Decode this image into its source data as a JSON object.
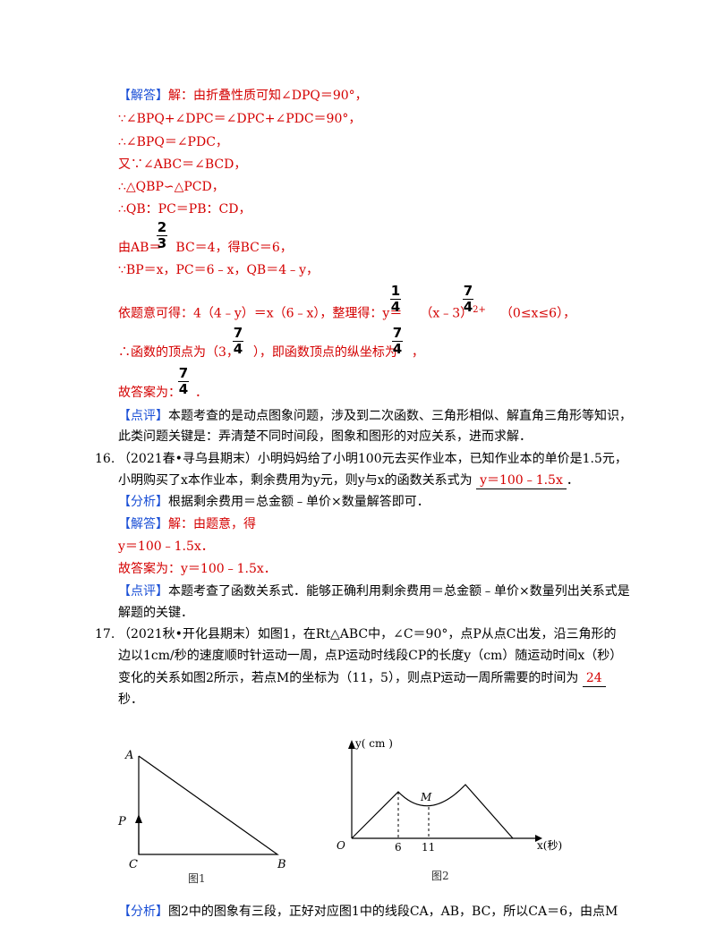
{
  "labels": {
    "answer": "【解答】",
    "comment": "【点评】",
    "analysis": "【分析】"
  },
  "lines": {
    "l1": "解：由折叠性质可知∠DPQ＝90°，",
    "l2": "∵∠BPQ+∠DPC＝∠DPC+∠PDC＝90°，",
    "l3": "∴∠BPQ＝∠PDC，",
    "l4": "又∵∠ABC＝∠BCD，",
    "l5": "∴△QBP∽△PCD，",
    "l6": "∴QB：PC＝PB：CD，",
    "l7a": "由AB＝",
    "l7b": "BC＝4，得BC＝6，",
    "l8": "∵BP＝x，PC＝6﹣x，QB＝4﹣y，",
    "l9a": "依题意可得：4（4﹣y）＝x（6﹣x），整理得：y＝",
    "l9b": "（x﹣3）",
    "l9c": "2+",
    "l9d": "（0≤x≤6），",
    "l10a": "∴函数的顶点为（3，",
    "l10b": "），即函数顶点的纵坐标为",
    "l10c": "，",
    "l11": "故答案为：",
    "l11b": "．",
    "c15a": "本题考查的是动点图象问题，涉及到二次函数、三角形相似、解直角三角形等知识，",
    "c15b": "此类问题关键是：弄清楚不同时间段，图象和图形的对应关系，进而求解．"
  },
  "fracs": {
    "two": "2",
    "three": "3",
    "one": "1",
    "four": "4",
    "seven": "7"
  },
  "q16": {
    "num": "16.",
    "t1": "（2021春•寻乌县期末）小明妈妈给了小明100元去买作业本，已知作业本的单价是1.5元，",
    "t2": "小明购买了x本作业本，剩余费用为y元，则y与x的函数关系式为",
    "ans": "y＝100﹣1.5x",
    "t2end": "．",
    "analysis": "根据剩余费用＝总金额﹣单价×数量解答即可．",
    "sol1": "解：由题意，得",
    "sol2": "y＝100﹣1.5x．",
    "sol3": "故答案为：y＝100﹣1.5x．",
    "comment1": "本题考查了函数关系式．能够正确利用剩余费用＝总金额﹣单价×数量列出关系式是",
    "comment2": "解题的关键．"
  },
  "q17": {
    "num": "17.",
    "t1": "（2021秋•开化县期末）如图1，在Rt△ABC中，∠C＝90°，点P从点C出发，沿三角形的",
    "t2": "边以1cm/秒的速度顺时针运动一周，点P运动时线段CP的长度y（cm）随运动时间x（秒）",
    "t3": "变化的关系如图2所示，若点M的坐标为（11，5），则点P运动一周所需要的时间为",
    "ans": "24",
    "t4": "秒．",
    "analysis": "图2中的图象有三段，正好对应图1中的线段CA，AB，BC，所以CA＝6，由点M"
  },
  "fig1": {
    "A": "A",
    "B": "B",
    "C": "C",
    "P": "P",
    "caption": "图1"
  },
  "fig2": {
    "ylabel": "y( cm )",
    "xlabel": "x(秒)",
    "origin": "O",
    "tick6": "6",
    "tick11": "11",
    "M": "M",
    "caption": "图2"
  }
}
